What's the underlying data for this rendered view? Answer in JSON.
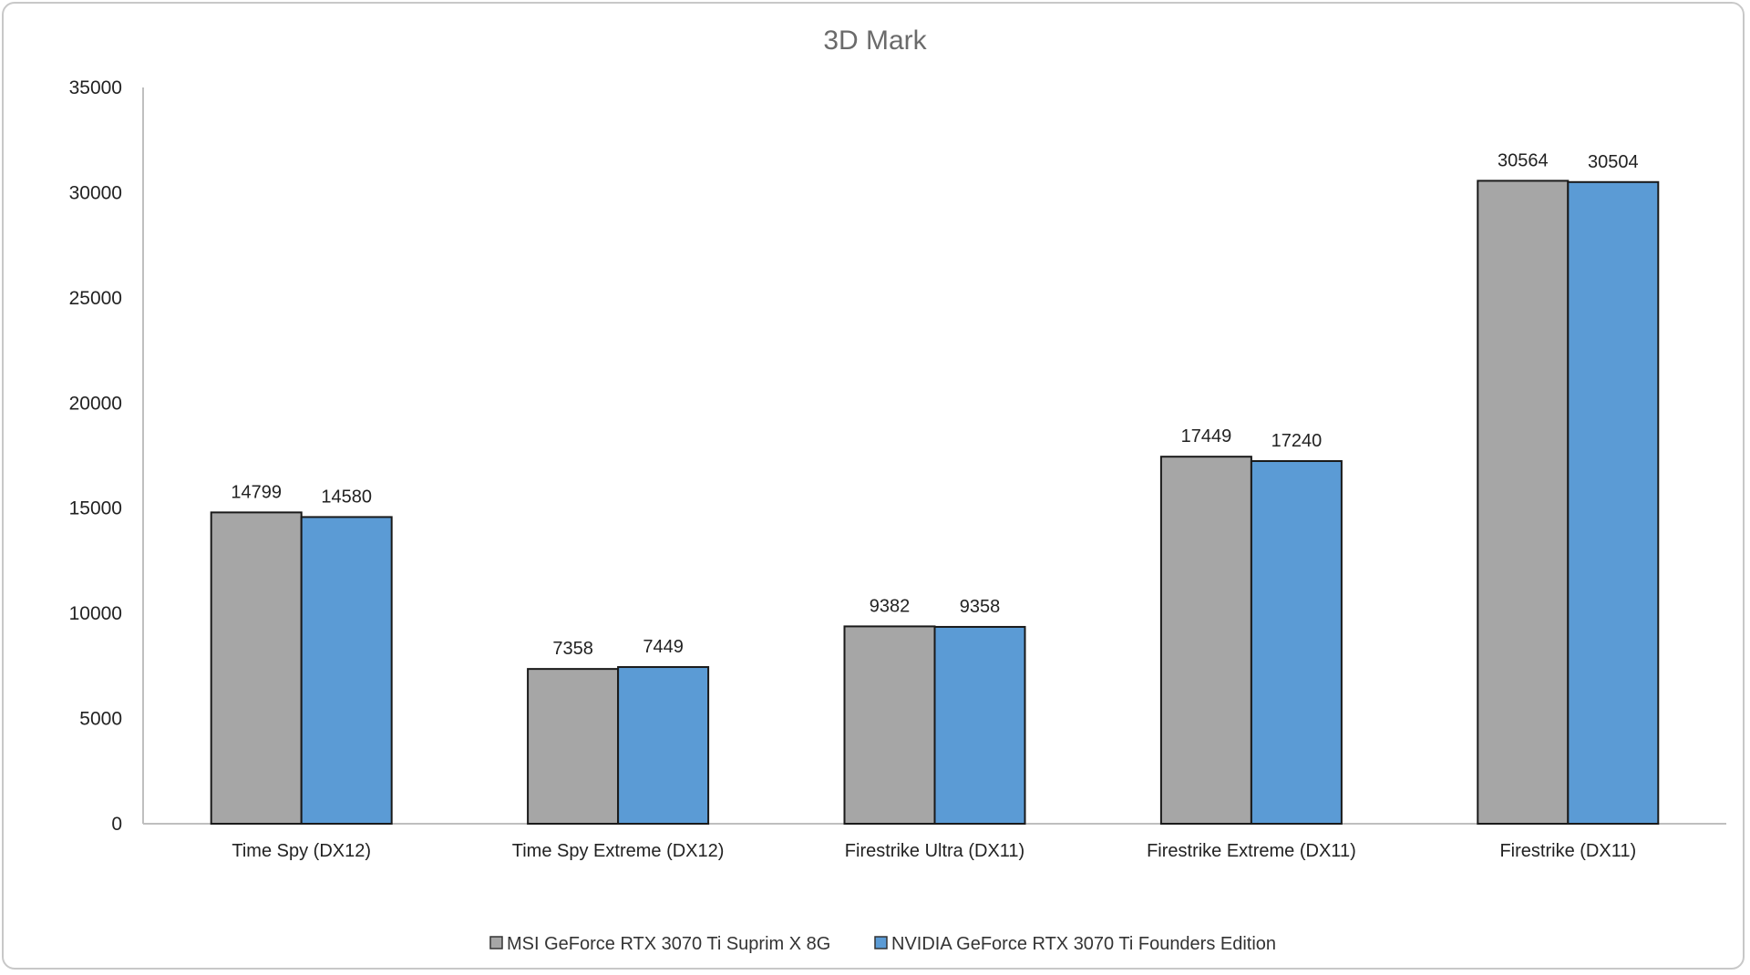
{
  "chart_data": {
    "type": "bar",
    "title": "3D Mark",
    "xlabel": "",
    "ylabel": "",
    "ylim": [
      0,
      35000
    ],
    "yticks": [
      0,
      5000,
      10000,
      15000,
      20000,
      25000,
      30000,
      35000
    ],
    "grid": false,
    "legend_position": "bottom",
    "categories": [
      "Time Spy (DX12)",
      "Time Spy Extreme (DX12)",
      "Firestrike Ultra (DX11)",
      "Firestrike Extreme (DX11)",
      "Firestrike (DX11)"
    ],
    "series": [
      {
        "name": "MSI GeForce RTX 3070 Ti Suprim X 8G",
        "color": "#a6a6a6",
        "values": [
          14799,
          7358,
          9382,
          17449,
          30564
        ]
      },
      {
        "name": "NVIDIA GeForce RTX 3070 Ti Founders Edition",
        "color": "#5b9bd5",
        "values": [
          14580,
          7449,
          9358,
          17240,
          30504
        ]
      }
    ]
  }
}
